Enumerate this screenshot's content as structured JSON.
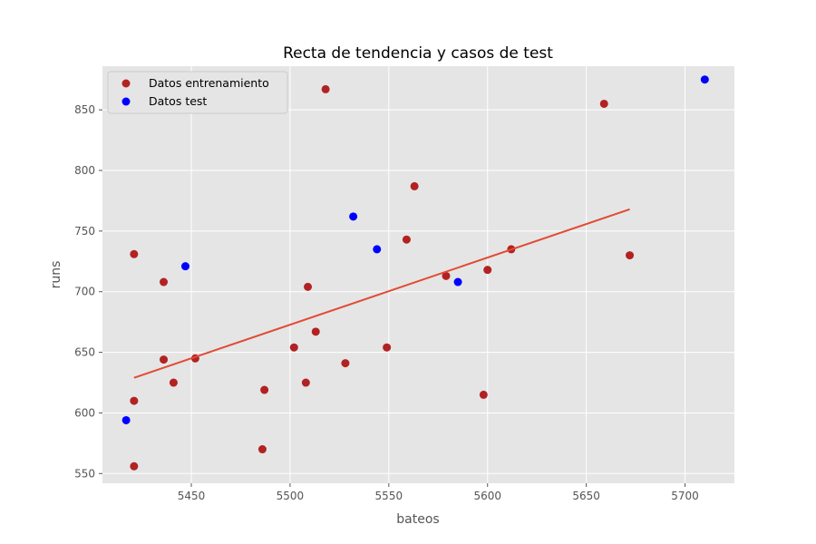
{
  "chart_data": {
    "type": "scatter",
    "title": "Recta de tendencia y casos de test",
    "xlabel": "bateos",
    "ylabel": "runs",
    "xlim": [
      5405,
      5725
    ],
    "ylim": [
      542,
      886
    ],
    "xticks": [
      5450,
      5500,
      5550,
      5600,
      5650,
      5700
    ],
    "yticks": [
      550,
      600,
      650,
      700,
      750,
      800,
      850
    ],
    "grid": true,
    "legend_position": "upper-left",
    "series": [
      {
        "name": "Datos entrenamiento",
        "color": "#b22222",
        "points": [
          [
            5421,
            731
          ],
          [
            5436,
            708
          ],
          [
            5436,
            644
          ],
          [
            5441,
            625
          ],
          [
            5452,
            645
          ],
          [
            5421,
            610
          ],
          [
            5421,
            556
          ],
          [
            5487,
            619
          ],
          [
            5486,
            570
          ],
          [
            5502,
            654
          ],
          [
            5508,
            625
          ],
          [
            5509,
            704
          ],
          [
            5513,
            667
          ],
          [
            5518,
            867
          ],
          [
            5528,
            641
          ],
          [
            5549,
            654
          ],
          [
            5559,
            743
          ],
          [
            5563,
            787
          ],
          [
            5579,
            713
          ],
          [
            5598,
            615
          ],
          [
            5600,
            718
          ],
          [
            5612,
            735
          ],
          [
            5659,
            855
          ],
          [
            5672,
            730
          ]
        ]
      },
      {
        "name": "Datos test",
        "color": "#0000ff",
        "points": [
          [
            5417,
            594
          ],
          [
            5447,
            721
          ],
          [
            5532,
            762
          ],
          [
            5544,
            735
          ],
          [
            5585,
            708
          ],
          [
            5710,
            875
          ]
        ]
      }
    ],
    "trend_line": {
      "color": "#e24a33",
      "points": [
        [
          5421,
          629
        ],
        [
          5672,
          768
        ]
      ]
    }
  }
}
